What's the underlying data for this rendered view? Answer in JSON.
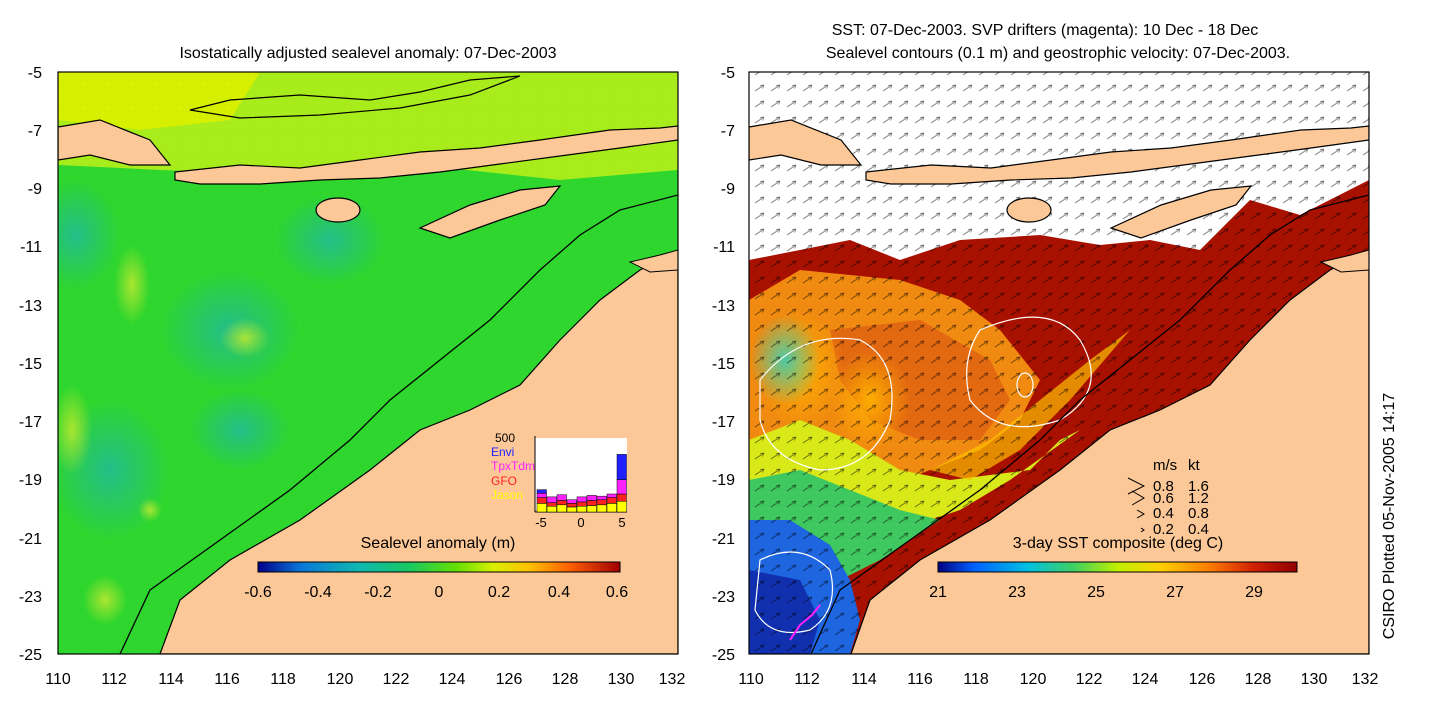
{
  "left_panel": {
    "title": "Isostatically adjusted sealevel anomaly: 07-Dec-2003",
    "y_ticks": [
      "-5",
      "-7",
      "-9",
      "-11",
      "-13",
      "-15",
      "-17",
      "-19",
      "-21",
      "-23",
      "-25"
    ],
    "x_ticks": [
      "110",
      "112",
      "114",
      "116",
      "118",
      "120",
      "122",
      "124",
      "126",
      "128",
      "130",
      "132"
    ],
    "colorbar": {
      "label": "Sealevel anomaly (m)",
      "ticks": [
        "-0.6",
        "-0.4",
        "-0.2",
        "0",
        "0.2",
        "0.4",
        "0.6"
      ]
    },
    "inset": {
      "max_label": "500",
      "legend": [
        {
          "name": "Envi",
          "color": "#2020ff"
        },
        {
          "name": "TpxTdm",
          "color": "#ff20ff"
        },
        {
          "name": "GFO",
          "color": "#ff2020"
        },
        {
          "name": "Jason",
          "color": "#ffff00"
        }
      ],
      "x_ticks": [
        "-5",
        "0",
        "5"
      ]
    }
  },
  "right_panel": {
    "title_line1": "SST: 07-Dec-2003. SVP drifters (magenta): 10 Dec - 18 Dec",
    "title_line2": "Sealevel contours (0.1 m) and geostrophic velocity: 07-Dec-2003.",
    "y_ticks": [
      "-5",
      "-7",
      "-9",
      "-11",
      "-13",
      "-15",
      "-17",
      "-19",
      "-21",
      "-23",
      "-25"
    ],
    "x_ticks": [
      "110",
      "112",
      "114",
      "116",
      "118",
      "120",
      "122",
      "124",
      "126",
      "128",
      "130",
      "132"
    ],
    "colorbar": {
      "label": "3-day SST composite (deg C)",
      "ticks": [
        "21",
        "23",
        "25",
        "27",
        "29"
      ]
    },
    "velocity_legend": {
      "header_ms": "m/s",
      "header_kt": "kt",
      "rows": [
        {
          "ms": "0.8",
          "kt": "1.6"
        },
        {
          "ms": "0.6",
          "kt": "1.2"
        },
        {
          "ms": "0.4",
          "kt": "0.8"
        },
        {
          "ms": "0.2",
          "kt": "0.4"
        }
      ]
    }
  },
  "credit": "CSIRO Plotted 05-Nov-2005 14:17",
  "colors": {
    "land": "#fdc898",
    "sla_background": "#2ed62e",
    "sst_background": "#a81000",
    "sla_colormap": [
      "#00008b",
      "#0a78d8",
      "#10b8b0",
      "#18c860",
      "#66e000",
      "#d8f000",
      "#ffc000",
      "#ff6000",
      "#a00000"
    ],
    "sst_colormap": [
      "#000080",
      "#0060ff",
      "#00c0e0",
      "#40d060",
      "#c0f000",
      "#ffd000",
      "#ff8000",
      "#d02000",
      "#900000"
    ]
  }
}
